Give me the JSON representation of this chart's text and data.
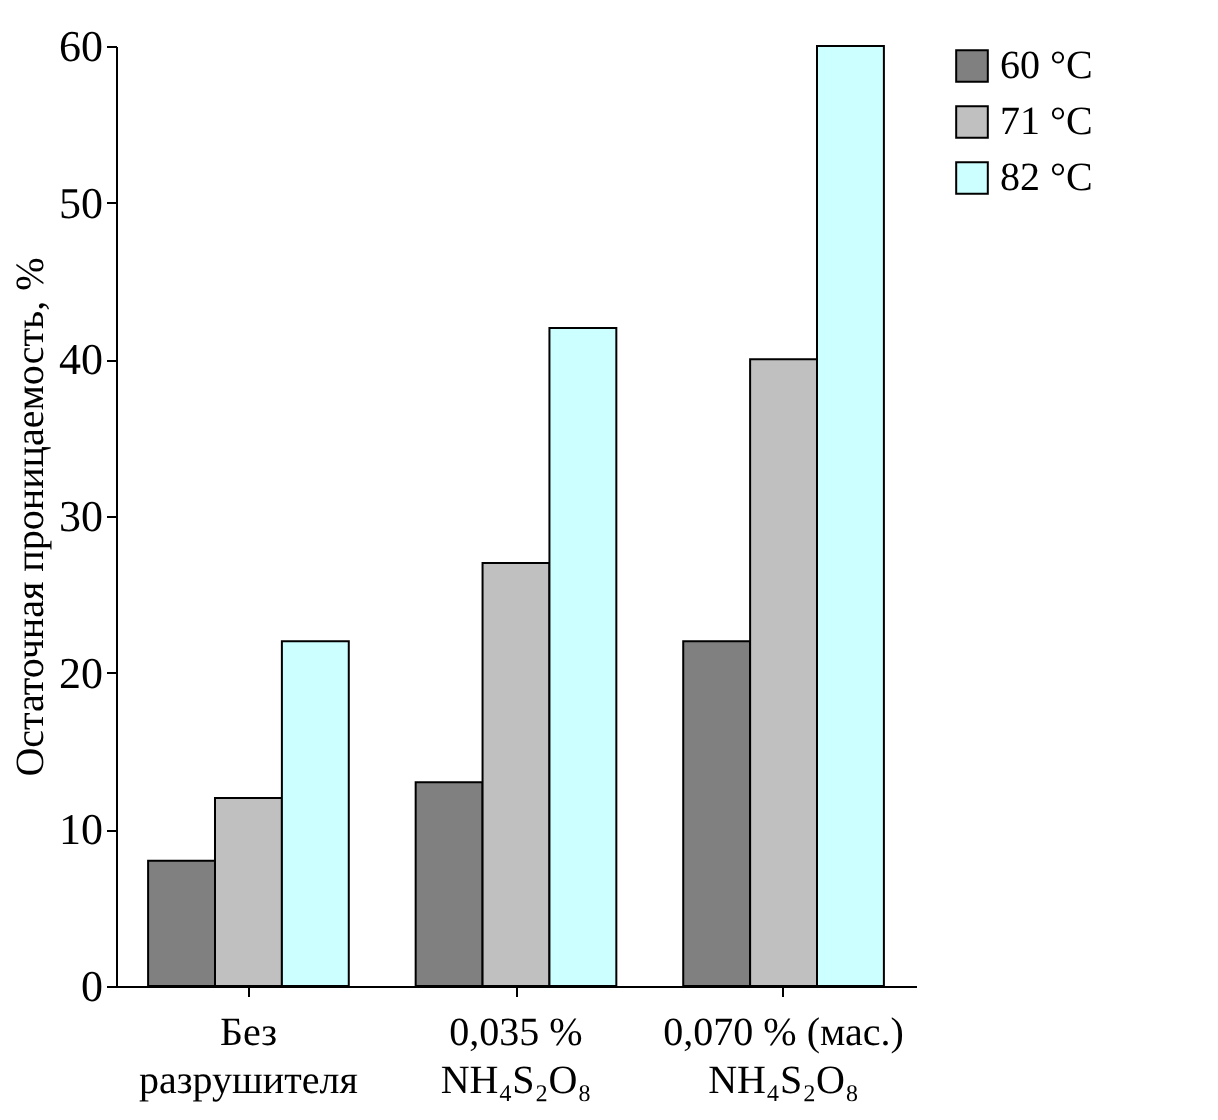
{
  "chart_data": {
    "type": "bar",
    "ylabel": "Остаточная проницаемость, %",
    "categories": [
      "Без разрушителя",
      "0,035 % NH₄S₂O₈",
      "0,070 % (мас.) NH₄S₂O₈"
    ],
    "series": [
      {
        "name": "60 °C",
        "color": "#808080",
        "values": [
          8,
          13,
          22
        ]
      },
      {
        "name": "71 °C",
        "color": "#c0c0c0",
        "values": [
          12,
          27,
          40
        ]
      },
      {
        "name": "82 °C",
        "color": "#ccffff",
        "values": [
          22,
          42,
          60
        ]
      }
    ],
    "ylim": [
      0,
      60
    ],
    "yticks": [
      0,
      10,
      20,
      30,
      40,
      50,
      60
    ],
    "grid": false,
    "legend": "right"
  }
}
